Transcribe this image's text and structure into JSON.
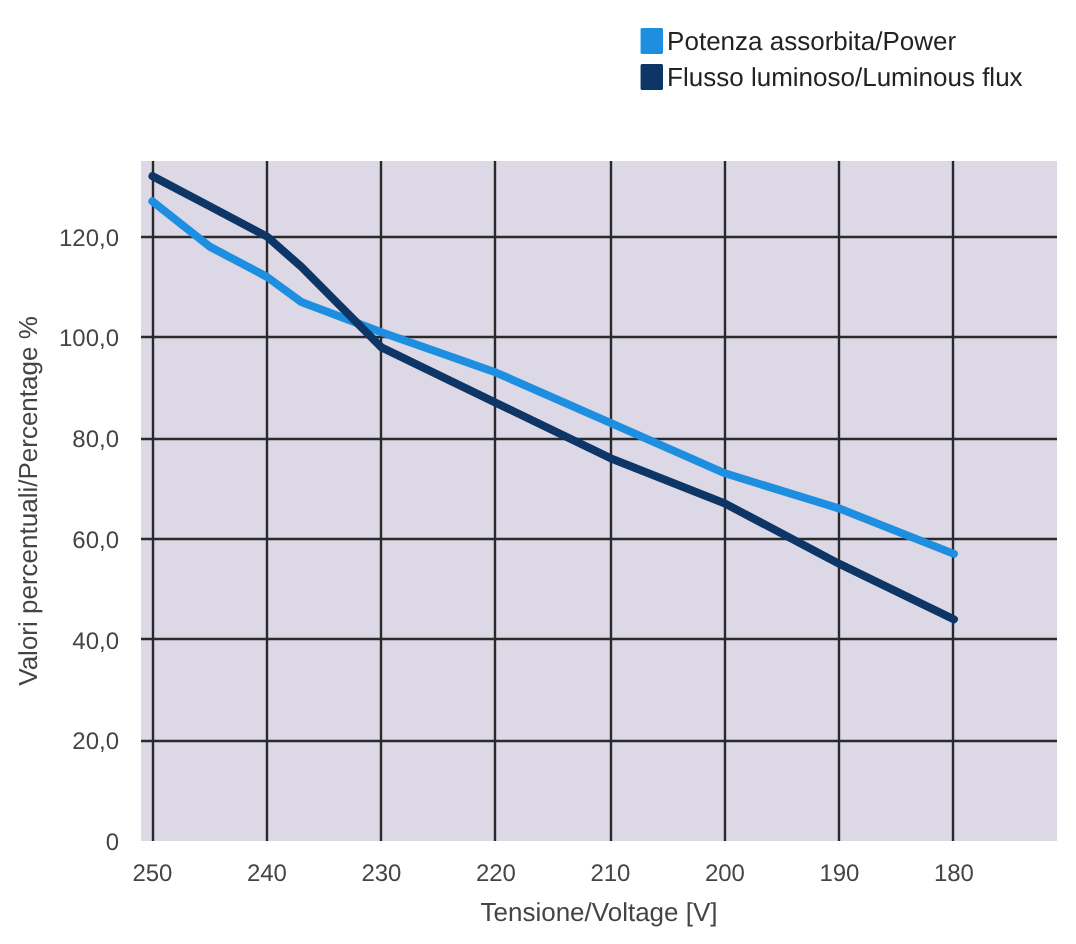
{
  "chart_data": {
    "type": "line",
    "xlabel": "Tensione/Voltage [V]",
    "ylabel": "Valori percentuali/Percentage %",
    "x": [
      250,
      245,
      240,
      237,
      230,
      220,
      210,
      200,
      190,
      180
    ],
    "series": [
      {
        "name": "Potenza assorbita/Power",
        "color": "#1e8fe0",
        "values": [
          127,
          118,
          112,
          107,
          101,
          93,
          83,
          73,
          66,
          57
        ]
      },
      {
        "name": "Flusso luminoso/Luminous flux",
        "color": "#0d3566",
        "values": [
          132,
          126,
          120,
          114,
          98,
          87,
          76,
          67,
          55,
          44
        ]
      }
    ],
    "xlim": [
      251,
      171
    ],
    "ylim": [
      0,
      135
    ],
    "xticks": [
      250,
      240,
      230,
      220,
      210,
      200,
      190,
      180
    ],
    "yticks": [
      {
        "value": 0,
        "label": "0"
      },
      {
        "value": 20,
        "label": "20,0"
      },
      {
        "value": 40,
        "label": "40,0"
      },
      {
        "value": 60,
        "label": "60,0"
      },
      {
        "value": 80,
        "label": "80,0"
      },
      {
        "value": 100,
        "label": "100,0"
      },
      {
        "value": 120,
        "label": "120,0"
      }
    ],
    "grid": true,
    "legend": "top right",
    "line_style": "solid",
    "marker": "none"
  }
}
